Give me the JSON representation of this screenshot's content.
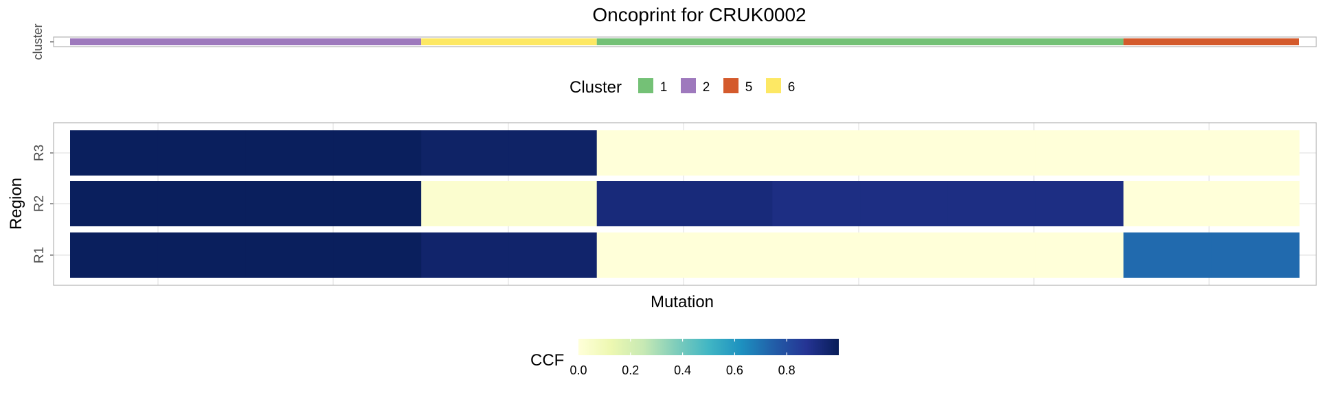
{
  "chart_data": {
    "type": "heatmap",
    "title": "Oncoprint for CRUK0002",
    "xlabel": "Mutation",
    "ylabel": "Region",
    "grid": true,
    "annotation_track": {
      "label": "cluster",
      "segments": [
        {
          "cluster": "2",
          "span": 4
        },
        {
          "cluster": "6",
          "span": 2
        },
        {
          "cluster": "1",
          "span": 6
        },
        {
          "cluster": "5",
          "span": 2
        }
      ]
    },
    "cluster_legend": {
      "title": "Cluster",
      "position": "middle",
      "entries": [
        {
          "label": "1",
          "color": "#74c176"
        },
        {
          "label": "2",
          "color": "#9e79bd"
        },
        {
          "label": "5",
          "color": "#d45a2c"
        },
        {
          "label": "6",
          "color": "#fde864"
        }
      ]
    },
    "columns": 14,
    "rows": [
      {
        "label": "R3",
        "ccf": [
          0.99,
          0.99,
          0.99,
          0.99,
          0.97,
          0.97,
          0.0,
          0.0,
          0.0,
          0.0,
          0.0,
          0.0,
          0.0,
          0.0
        ]
      },
      {
        "label": "R2",
        "ccf": [
          0.99,
          0.99,
          0.99,
          0.99,
          0.03,
          0.03,
          0.93,
          0.93,
          0.91,
          0.91,
          0.91,
          0.91,
          0.0,
          0.0
        ]
      },
      {
        "label": "R1",
        "ccf": [
          0.99,
          0.99,
          0.99,
          0.99,
          0.96,
          0.96,
          0.0,
          0.0,
          0.0,
          0.0,
          0.0,
          0.0,
          0.72,
          0.72
        ]
      }
    ],
    "colorbar": {
      "title": "CCF",
      "position": "bottom",
      "range": [
        0,
        1
      ],
      "ticks": [
        "0.0",
        "0.2",
        "0.4",
        "0.6",
        "0.8"
      ],
      "colors": [
        "#ffffd9",
        "#edf8b1",
        "#c7e9b4",
        "#7fcdbb",
        "#41b6c4",
        "#1d91c0",
        "#225ea8",
        "#253494",
        "#081d58"
      ]
    }
  }
}
